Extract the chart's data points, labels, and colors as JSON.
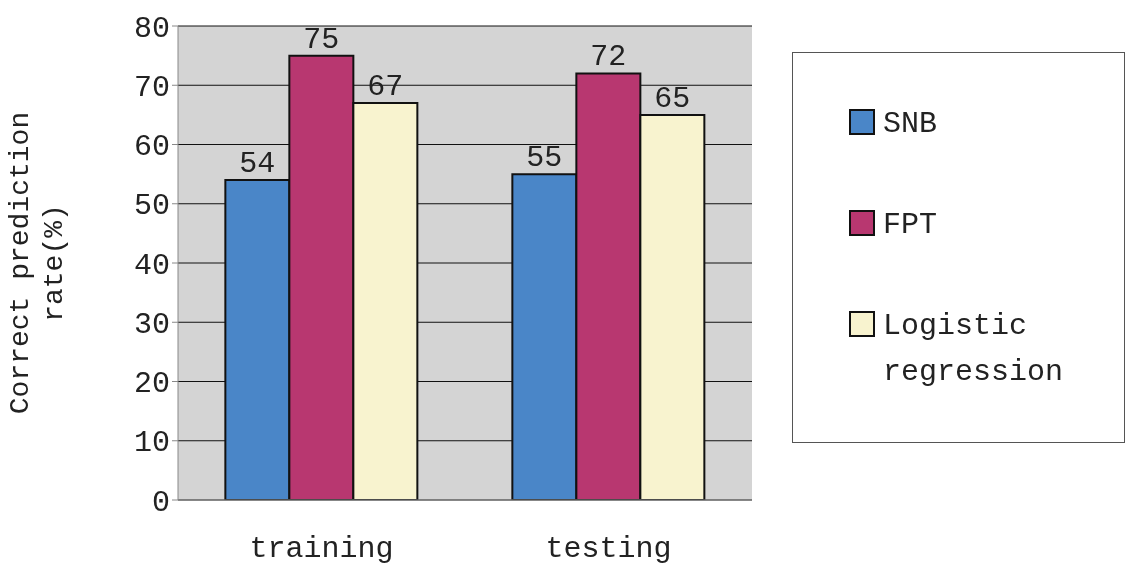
{
  "chart_data": {
    "type": "bar",
    "ylabel": "Correct prediction rate(%)",
    "categories": [
      "training",
      "testing"
    ],
    "series": [
      {
        "name": "SNB",
        "color": "#4a86c8",
        "values": [
          54,
          55
        ]
      },
      {
        "name": "FPT",
        "color": "#b83770",
        "values": [
          75,
          72
        ]
      },
      {
        "name": "Logistic regression",
        "color": "#f8f3cf",
        "values": [
          67,
          65
        ]
      }
    ],
    "ylim": [
      0,
      80
    ],
    "yticks": [
      0,
      10,
      20,
      30,
      40,
      50,
      60,
      70,
      80
    ],
    "grid": "y",
    "legend": "right",
    "data_labels": true
  }
}
